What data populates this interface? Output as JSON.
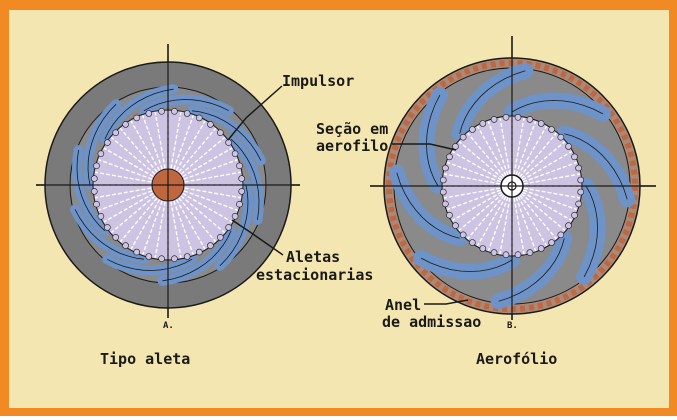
{
  "colors": {
    "frame": "#f28a24",
    "background": "#f4e6b0",
    "casing": "#7a7a7a",
    "vane": "#6e93c8",
    "impeller": "#cdc3e2",
    "hub": "#c0673f",
    "line": "#1a1a1a"
  },
  "left_figure": {
    "impeller_label": "Impulsor",
    "vanes_label_line1": "Aletas",
    "vanes_label_line2": "estacionarias",
    "letter": "A.",
    "caption": "Tipo aleta"
  },
  "right_figure": {
    "airfoil_label_line1": "Seção em",
    "airfoil_label_line2": "aerofilo",
    "ring_label_line1": "Anel",
    "ring_label_line2": "de admissao",
    "letter": "B.",
    "caption": "Aerofólio"
  }
}
